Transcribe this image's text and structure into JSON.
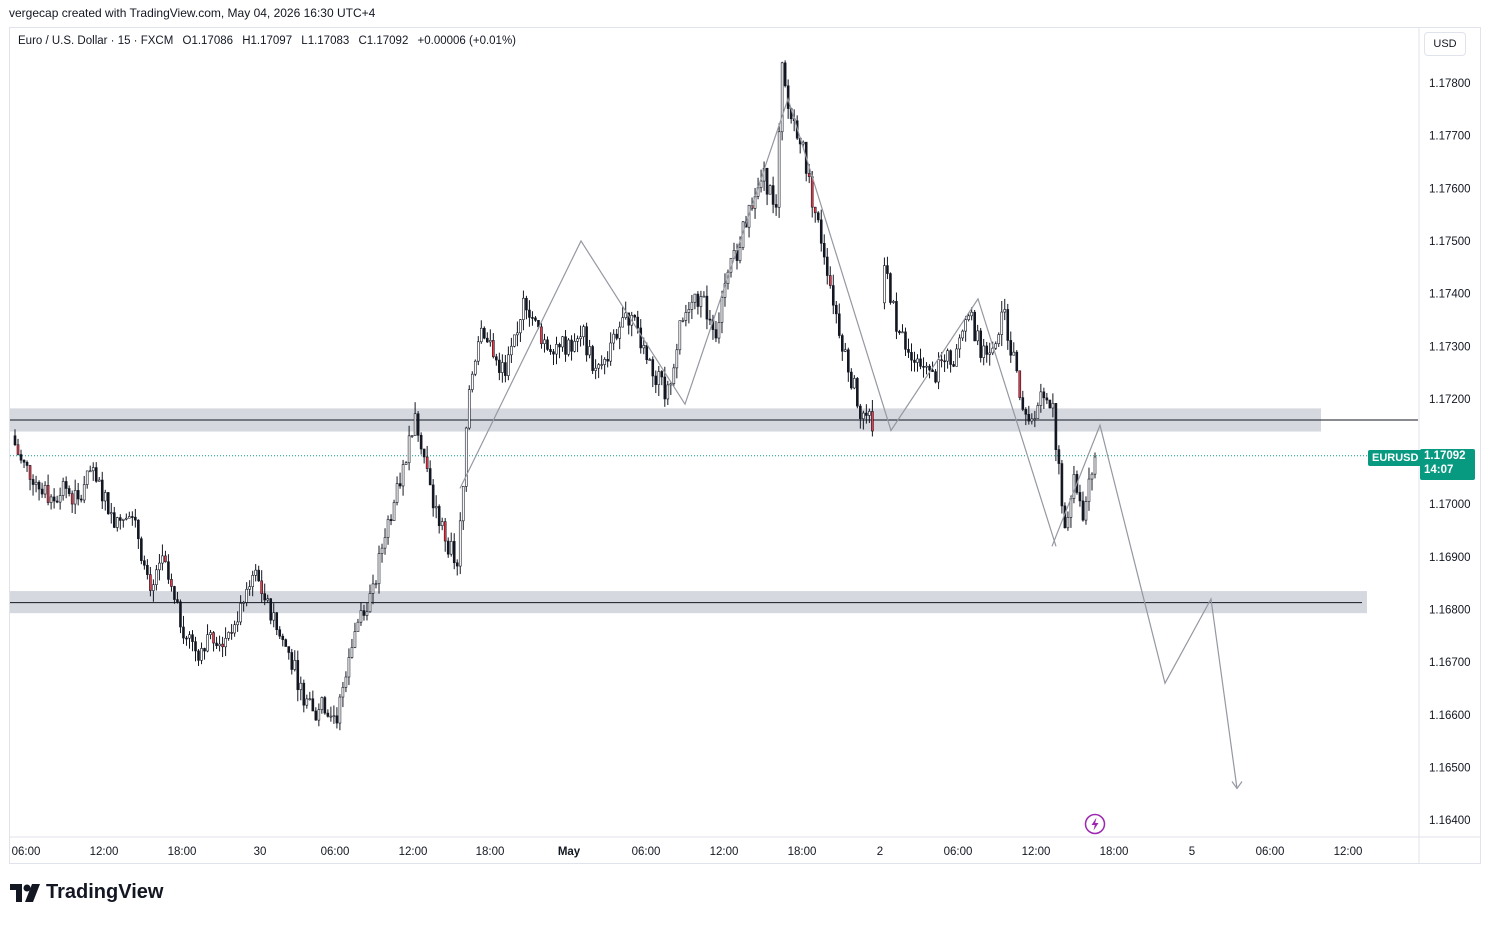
{
  "header": {
    "caption": "vergecap created with TradingView.com, May 04, 2026 16:30 UTC+4"
  },
  "legend": {
    "symbol": "Euro / U.S. Dollar · 15 · FXCM",
    "open": "O1.17086",
    "high": "H1.17097",
    "low": "L1.17083",
    "close": "C1.17092",
    "change": "+0.00006 (+0.01%)"
  },
  "price_axis": {
    "currency": "USD",
    "labels": [
      "1.17800",
      "1.17700",
      "1.17600",
      "1.17500",
      "1.17400",
      "1.17300",
      "1.17200",
      "1.17000",
      "1.16900",
      "1.16800",
      "1.16700",
      "1.16600",
      "1.16500",
      "1.16400"
    ]
  },
  "time_axis": {
    "labels": [
      "06:00",
      "12:00",
      "18:00",
      "30",
      "06:00",
      "12:00",
      "18:00",
      "May",
      "06:00",
      "12:00",
      "18:00",
      "2",
      "06:00",
      "12:00",
      "18:00",
      "5",
      "06:00",
      "12:00"
    ]
  },
  "last_price": {
    "symbol": "EURUSD",
    "price": "1.17092",
    "countdown": "14:07"
  },
  "branding": {
    "logo_text": "TradingView"
  },
  "colors": {
    "up": "#089981",
    "down": "#f23645",
    "candle_body": "#131722",
    "zone": "#d1d4dc",
    "projection": "#9598a1",
    "accent": "#9c27b0"
  },
  "chart_data": {
    "type": "candlestick",
    "title": "Euro / U.S. Dollar · 15 · FXCM",
    "ylim": [
      1.1635,
      1.1788
    ],
    "y_ticks": [
      1.178,
      1.177,
      1.176,
      1.175,
      1.174,
      1.173,
      1.172,
      1.171,
      1.17,
      1.169,
      1.168,
      1.167,
      1.166,
      1.165,
      1.164
    ],
    "zones": [
      {
        "low": 1.17138,
        "high": 1.17182,
        "line": 1.1716
      },
      {
        "low": 1.16793,
        "high": 1.16835,
        "line": 1.16813
      }
    ],
    "price_path": [
      [
        0,
        1.1713
      ],
      [
        3,
        1.1708
      ],
      [
        6,
        1.1706
      ],
      [
        10,
        1.1703
      ],
      [
        14,
        1.1701
      ],
      [
        18,
        1.1703
      ],
      [
        22,
        1.17
      ],
      [
        26,
        1.1706
      ],
      [
        30,
        1.1702
      ],
      [
        34,
        1.1697
      ],
      [
        38,
        1.1699
      ],
      [
        42,
        1.1694
      ],
      [
        46,
        1.1682
      ],
      [
        50,
        1.169
      ],
      [
        54,
        1.1681
      ],
      [
        58,
        1.1675
      ],
      [
        62,
        1.1672
      ],
      [
        66,
        1.1676
      ],
      [
        70,
        1.1674
      ],
      [
        74,
        1.1678
      ],
      [
        78,
        1.1682
      ],
      [
        80,
        1.1688
      ],
      [
        84,
        1.1682
      ],
      [
        88,
        1.1676
      ],
      [
        92,
        1.1672
      ],
      [
        96,
        1.1665
      ],
      [
        100,
        1.166
      ],
      [
        104,
        1.1662
      ],
      [
        108,
        1.1659
      ],
      [
        112,
        1.1672
      ],
      [
        116,
        1.168
      ],
      [
        120,
        1.1683
      ],
      [
        124,
        1.1695
      ],
      [
        128,
        1.1702
      ],
      [
        132,
        1.1712
      ],
      [
        134,
        1.1718
      ],
      [
        136,
        1.1712
      ],
      [
        140,
        1.17
      ],
      [
        144,
        1.1694
      ],
      [
        148,
        1.1688
      ],
      [
        150,
        1.1703
      ],
      [
        152,
        1.1722
      ],
      [
        156,
        1.1735
      ],
      [
        160,
        1.1728
      ],
      [
        164,
        1.1725
      ],
      [
        168,
        1.1732
      ],
      [
        170,
        1.174
      ],
      [
        174,
        1.1734
      ],
      [
        178,
        1.173
      ],
      [
        182,
        1.1731
      ],
      [
        186,
        1.1729
      ],
      [
        190,
        1.1732
      ],
      [
        194,
        1.1725
      ],
      [
        198,
        1.1728
      ],
      [
        202,
        1.1734
      ],
      [
        206,
        1.1736
      ],
      [
        210,
        1.173
      ],
      [
        214,
        1.1724
      ],
      [
        218,
        1.1721
      ],
      [
        222,
        1.1733
      ],
      [
        226,
        1.174
      ],
      [
        230,
        1.1738
      ],
      [
        234,
        1.1733
      ],
      [
        238,
        1.1743
      ],
      [
        242,
        1.175
      ],
      [
        246,
        1.1758
      ],
      [
        250,
        1.1762
      ],
      [
        254,
        1.1757
      ],
      [
        256,
        1.1782
      ],
      [
        258,
        1.1775
      ],
      [
        262,
        1.177
      ],
      [
        266,
        1.1758
      ],
      [
        270,
        1.1748
      ],
      [
        274,
        1.1736
      ],
      [
        278,
        1.1726
      ],
      [
        282,
        1.1718
      ],
      [
        286,
        1.1715
      ],
      [
        290,
        1.1746
      ],
      [
        294,
        1.1734
      ],
      [
        298,
        1.1728
      ],
      [
        302,
        1.1726
      ],
      [
        306,
        1.1724
      ],
      [
        310,
        1.1727
      ],
      [
        314,
        1.1728
      ],
      [
        318,
        1.1737
      ],
      [
        322,
        1.1729
      ],
      [
        326,
        1.1731
      ],
      [
        330,
        1.1736
      ],
      [
        334,
        1.1724
      ],
      [
        338,
        1.1716
      ],
      [
        342,
        1.172
      ],
      [
        346,
        1.1718
      ],
      [
        350,
        1.1694
      ],
      [
        353,
        1.1706
      ],
      [
        356,
        1.1698
      ],
      [
        360,
        1.1709
      ]
    ],
    "projection_path": [
      [
        1052,
        1.1692
      ],
      [
        1100,
        1.1715
      ],
      [
        1165,
        1.1666
      ],
      [
        1211,
        1.1682
      ],
      [
        1237,
        1.1646
      ]
    ],
    "zigzag_path": [
      [
        460,
        1.1703
      ],
      [
        581,
        1.175
      ],
      [
        685,
        1.1719
      ],
      [
        788,
        1.1777
      ],
      [
        891,
        1.1714
      ],
      [
        978,
        1.1739
      ],
      [
        1056,
        1.1692
      ]
    ]
  }
}
